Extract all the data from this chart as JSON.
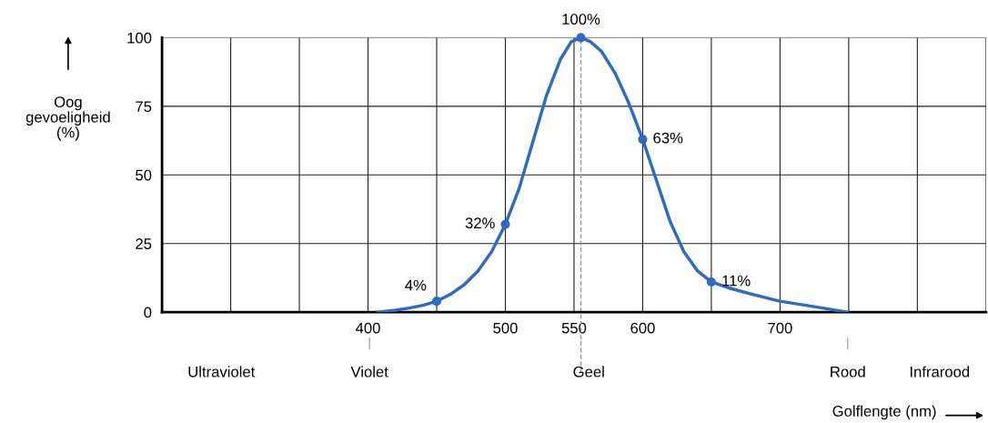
{
  "chart_data": {
    "type": "line",
    "xlabel": "Golflengte (nm)",
    "ylabel": "Oog\ngevoeligheid\n(%)",
    "xlim": [
      250,
      850
    ],
    "ylim": [
      0,
      100
    ],
    "xticks": [
      {
        "value": 250,
        "label": null
      },
      {
        "value": 300,
        "label": null
      },
      {
        "value": 350,
        "label": null
      },
      400,
      {
        "value": 450,
        "label": null
      },
      500,
      550,
      600,
      {
        "value": 650,
        "label": null
      },
      700,
      {
        "value": 750,
        "label": null
      },
      {
        "value": 800,
        "label": null
      },
      {
        "value": 850,
        "label": null
      }
    ],
    "yticks": [
      0,
      25,
      50,
      75,
      100
    ],
    "grid": true,
    "series": [
      {
        "color": "#2f6bbf",
        "x": [
          407,
          420,
          430,
          440,
          450,
          460,
          470,
          480,
          490,
          500,
          510,
          520,
          530,
          540,
          548,
          555,
          562,
          570,
          580,
          590,
          600,
          610,
          620,
          630,
          640,
          650,
          665,
          680,
          700,
          725,
          749
        ],
        "values": [
          0,
          0.7,
          1.5,
          2.5,
          4,
          6.5,
          10,
          15,
          22,
          32,
          45,
          62,
          79,
          92,
          98.5,
          100,
          98.5,
          95,
          87,
          76,
          63,
          48,
          33,
          22,
          15,
          11,
          8.5,
          6.5,
          4,
          2,
          0
        ]
      },
      {
        "type": "scatter",
        "color": "#2f6bbf",
        "marker": "circle",
        "x": [
          450,
          500,
          555,
          600,
          650
        ],
        "values": [
          4,
          32,
          100,
          63,
          11
        ],
        "value_labels": [
          "4%",
          "32%",
          "100%",
          "63%",
          "11%"
        ]
      }
    ],
    "ref_lines": [
      {
        "axis": "x",
        "value": 555,
        "color": "#999999",
        "line_style": "dashed"
      }
    ],
    "annotations": [
      "Ultraviolet",
      "Violet",
      "Geel",
      "Rood",
      "Infrarood"
    ]
  }
}
